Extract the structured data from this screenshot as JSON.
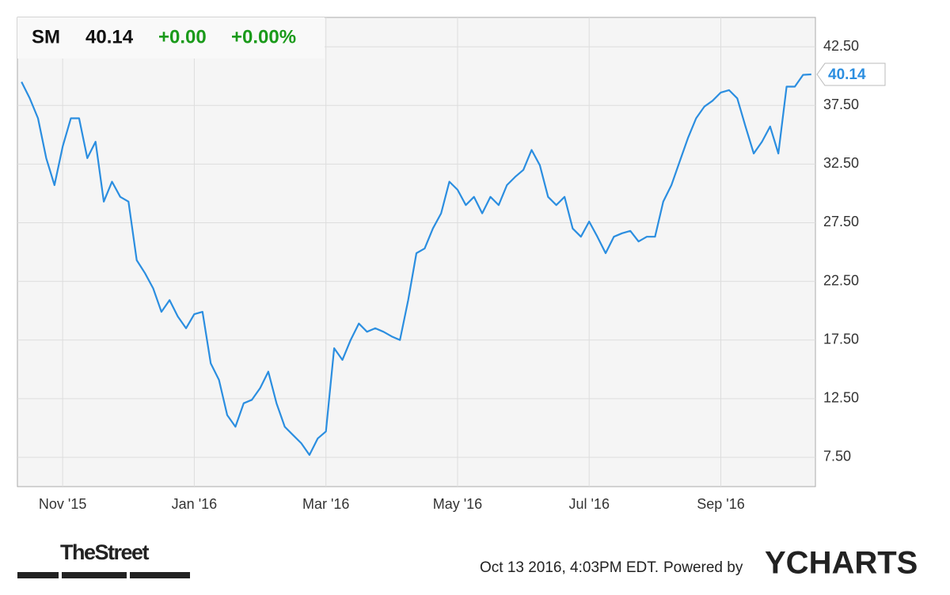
{
  "chart_data": {
    "type": "line",
    "header": {
      "symbol": "SM",
      "price": "40.14",
      "change": "+0.00",
      "change_pct": "+0.00%"
    },
    "categories": [
      null,
      null,
      null,
      null,
      null,
      "Nov '15",
      null,
      null,
      null,
      null,
      null,
      null,
      null,
      null,
      null,
      null,
      null,
      null,
      null,
      null,
      null,
      "Jan '16",
      null,
      null,
      null,
      null,
      null,
      null,
      null,
      null,
      null,
      null,
      null,
      null,
      null,
      null,
      null,
      "Mar '16",
      null,
      null,
      null,
      null,
      null,
      null,
      null,
      null,
      null,
      null,
      null,
      null,
      null,
      null,
      null,
      "May '16",
      null,
      null,
      null,
      null,
      null,
      null,
      null,
      null,
      null,
      null,
      null,
      null,
      null,
      null,
      null,
      "Jul '16",
      null,
      null,
      null,
      null,
      null,
      null,
      null,
      null,
      null,
      null,
      null,
      null,
      null,
      null,
      null,
      "Sep '16",
      null,
      null,
      null,
      null,
      null,
      null,
      null,
      null,
      null,
      null,
      null
    ],
    "series": [
      {
        "name": "SM",
        "color": "#2b8ee0",
        "values": [
          39.5,
          38.1,
          36.4,
          33.0,
          30.7,
          34.0,
          36.4,
          36.4,
          33.0,
          34.4,
          29.3,
          31.0,
          29.7,
          29.3,
          24.3,
          23.2,
          21.9,
          19.9,
          20.9,
          19.5,
          18.5,
          19.7,
          19.9,
          15.5,
          14.1,
          11.1,
          10.1,
          12.1,
          12.4,
          13.4,
          14.8,
          12.1,
          10.1,
          9.4,
          8.7,
          7.7,
          9.1,
          9.7,
          16.8,
          15.8,
          17.5,
          18.9,
          18.2,
          18.5,
          18.2,
          17.8,
          17.5,
          20.9,
          24.9,
          25.3,
          27.0,
          28.3,
          31.0,
          30.3,
          29.0,
          29.7,
          28.3,
          29.7,
          29.0,
          30.7,
          31.4,
          32.0,
          33.7,
          32.4,
          29.7,
          29.0,
          29.7,
          27.0,
          26.3,
          27.6,
          26.3,
          24.9,
          26.3,
          26.6,
          26.8,
          25.9,
          26.3,
          26.3,
          29.3,
          30.7,
          32.7,
          34.7,
          36.4,
          37.4,
          37.9,
          38.6,
          38.8,
          38.1,
          35.7,
          33.4,
          34.4,
          35.7,
          33.4,
          39.1,
          39.1,
          40.1,
          40.14
        ]
      }
    ],
    "ylim": [
      5,
      45
    ],
    "yticks": [
      {
        "value": 7.5,
        "label": "7.50"
      },
      {
        "value": 12.5,
        "label": "12.50"
      },
      {
        "value": 17.5,
        "label": "17.50"
      },
      {
        "value": 22.5,
        "label": "22.50"
      },
      {
        "value": 27.5,
        "label": "27.50"
      },
      {
        "value": 32.5,
        "label": "32.50"
      },
      {
        "value": 37.5,
        "label": "37.50"
      },
      {
        "value": 42.5,
        "label": "42.50"
      }
    ],
    "grid": true,
    "footer": {
      "source_logo": "TheStreet",
      "timestamp": "Oct 13 2016, 4:03PM EDT.",
      "powered_by": "Powered by",
      "brand": "YCHARTS"
    }
  }
}
